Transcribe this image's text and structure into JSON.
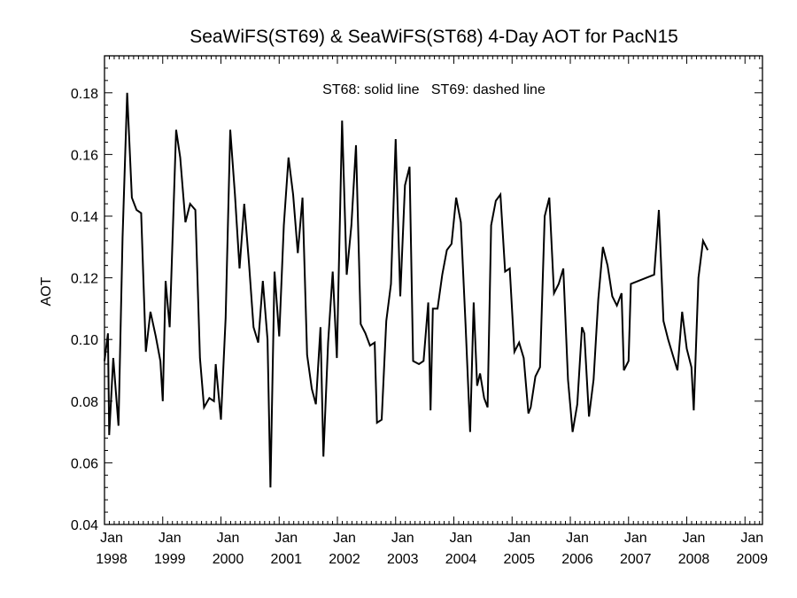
{
  "chart_data": {
    "type": "line",
    "title": "SeaWiFS(ST69) & SeaWiFS(ST68) 4-Day AOT for PacN15",
    "annotation": "ST68: solid line   ST69: dashed line",
    "ylabel": "AOT",
    "xlabel": "",
    "xlim": [
      1998.0,
      2009.3
    ],
    "ylim": [
      0.04,
      0.192
    ],
    "y_ticks": [
      0.04,
      0.06,
      0.08,
      0.1,
      0.12,
      0.14,
      0.16,
      0.18
    ],
    "y_tick_labels": [
      "0.04",
      "0.06",
      "0.08",
      "0.10",
      "0.12",
      "0.14",
      "0.16",
      "0.18"
    ],
    "x_ticks": [
      {
        "x": 1998,
        "month": "Jan",
        "year": "1998"
      },
      {
        "x": 1999,
        "month": "Jan",
        "year": "1999"
      },
      {
        "x": 2000,
        "month": "Jan",
        "year": "2000"
      },
      {
        "x": 2001,
        "month": "Jan",
        "year": "2001"
      },
      {
        "x": 2002,
        "month": "Jan",
        "year": "2002"
      },
      {
        "x": 2003,
        "month": "Jan",
        "year": "2003"
      },
      {
        "x": 2004,
        "month": "Jan",
        "year": "2004"
      },
      {
        "x": 2005,
        "month": "Jan",
        "year": "2005"
      },
      {
        "x": 2006,
        "month": "Jan",
        "year": "2006"
      },
      {
        "x": 2007,
        "month": "Jan",
        "year": "2007"
      },
      {
        "x": 2008,
        "month": "Jan",
        "year": "2008"
      },
      {
        "x": 2009,
        "month": "Jan",
        "year": "2009"
      }
    ],
    "grid": false,
    "series": [
      {
        "name": "ST68",
        "style": "solid",
        "color": "#000000",
        "points": [
          [
            1998.0,
            0.093
          ],
          [
            1998.06,
            0.102
          ],
          [
            1998.08,
            0.069
          ],
          [
            1998.15,
            0.094
          ],
          [
            1998.24,
            0.072
          ],
          [
            1998.31,
            0.133
          ],
          [
            1998.39,
            0.18
          ],
          [
            1998.47,
            0.146
          ],
          [
            1998.55,
            0.142
          ],
          [
            1998.63,
            0.141
          ],
          [
            1998.71,
            0.096
          ],
          [
            1998.79,
            0.109
          ],
          [
            1998.88,
            0.101
          ],
          [
            1998.96,
            0.093
          ],
          [
            1999.0,
            0.08
          ],
          [
            1999.05,
            0.119
          ],
          [
            1999.12,
            0.104
          ],
          [
            1999.23,
            0.168
          ],
          [
            1999.3,
            0.159
          ],
          [
            1999.39,
            0.138
          ],
          [
            1999.47,
            0.144
          ],
          [
            1999.56,
            0.142
          ],
          [
            1999.64,
            0.094
          ],
          [
            1999.71,
            0.078
          ],
          [
            1999.8,
            0.081
          ],
          [
            1999.88,
            0.08
          ],
          [
            1999.91,
            0.092
          ],
          [
            2000.0,
            0.074
          ],
          [
            2000.08,
            0.107
          ],
          [
            2000.16,
            0.168
          ],
          [
            2000.24,
            0.147
          ],
          [
            2000.32,
            0.123
          ],
          [
            2000.4,
            0.144
          ],
          [
            2000.48,
            0.125
          ],
          [
            2000.56,
            0.104
          ],
          [
            2000.64,
            0.099
          ],
          [
            2000.72,
            0.119
          ],
          [
            2000.8,
            0.1
          ],
          [
            2000.85,
            0.052
          ],
          [
            2000.92,
            0.122
          ],
          [
            2001.0,
            0.101
          ],
          [
            2001.08,
            0.137
          ],
          [
            2001.16,
            0.159
          ],
          [
            2001.24,
            0.147
          ],
          [
            2001.32,
            0.128
          ],
          [
            2001.4,
            0.146
          ],
          [
            2001.48,
            0.095
          ],
          [
            2001.56,
            0.084
          ],
          [
            2001.63,
            0.079
          ],
          [
            2001.71,
            0.104
          ],
          [
            2001.76,
            0.062
          ],
          [
            2001.84,
            0.099
          ],
          [
            2001.92,
            0.122
          ],
          [
            2001.99,
            0.094
          ],
          [
            2002.08,
            0.171
          ],
          [
            2002.16,
            0.121
          ],
          [
            2002.24,
            0.137
          ],
          [
            2002.32,
            0.163
          ],
          [
            2002.4,
            0.105
          ],
          [
            2002.48,
            0.102
          ],
          [
            2002.56,
            0.098
          ],
          [
            2002.64,
            0.099
          ],
          [
            2002.68,
            0.073
          ],
          [
            2002.76,
            0.074
          ],
          [
            2002.84,
            0.106
          ],
          [
            2002.92,
            0.118
          ],
          [
            2003.0,
            0.165
          ],
          [
            2003.08,
            0.114
          ],
          [
            2003.16,
            0.15
          ],
          [
            2003.24,
            0.156
          ],
          [
            2003.3,
            0.093
          ],
          [
            2003.4,
            0.092
          ],
          [
            2003.48,
            0.093
          ],
          [
            2003.56,
            0.112
          ],
          [
            2003.6,
            0.077
          ],
          [
            2003.64,
            0.11
          ],
          [
            2003.72,
            0.11
          ],
          [
            2003.8,
            0.121
          ],
          [
            2003.88,
            0.129
          ],
          [
            2003.96,
            0.131
          ],
          [
            2004.04,
            0.146
          ],
          [
            2004.12,
            0.138
          ],
          [
            2004.2,
            0.105
          ],
          [
            2004.28,
            0.07
          ],
          [
            2004.34,
            0.112
          ],
          [
            2004.4,
            0.085
          ],
          [
            2004.45,
            0.089
          ],
          [
            2004.52,
            0.081
          ],
          [
            2004.58,
            0.078
          ],
          [
            2004.64,
            0.137
          ],
          [
            2004.72,
            0.145
          ],
          [
            2004.8,
            0.147
          ],
          [
            2004.88,
            0.122
          ],
          [
            2004.96,
            0.123
          ],
          [
            2005.04,
            0.096
          ],
          [
            2005.12,
            0.099
          ],
          [
            2005.2,
            0.094
          ],
          [
            2005.28,
            0.076
          ],
          [
            2005.32,
            0.078
          ],
          [
            2005.4,
            0.088
          ],
          [
            2005.48,
            0.091
          ],
          [
            2005.56,
            0.14
          ],
          [
            2005.64,
            0.146
          ],
          [
            2005.72,
            0.115
          ],
          [
            2005.8,
            0.118
          ],
          [
            2005.88,
            0.123
          ],
          [
            2005.96,
            0.087
          ],
          [
            2006.04,
            0.07
          ],
          [
            2006.12,
            0.079
          ],
          [
            2006.2,
            0.104
          ],
          [
            2006.24,
            0.102
          ],
          [
            2006.32,
            0.075
          ],
          [
            2006.4,
            0.087
          ],
          [
            2006.48,
            0.113
          ],
          [
            2006.56,
            0.13
          ],
          [
            2006.64,
            0.124
          ],
          [
            2006.72,
            0.114
          ],
          [
            2006.8,
            0.111
          ],
          [
            2006.88,
            0.115
          ],
          [
            2006.92,
            0.09
          ],
          [
            2007.0,
            0.093
          ],
          [
            2007.04,
            0.118
          ],
          [
            2007.44,
            0.121
          ],
          [
            2007.52,
            0.142
          ],
          [
            2007.6,
            0.106
          ],
          [
            2007.68,
            0.1
          ],
          [
            2007.76,
            0.095
          ],
          [
            2007.84,
            0.09
          ],
          [
            2007.92,
            0.109
          ],
          [
            2008.0,
            0.097
          ],
          [
            2008.08,
            0.091
          ],
          [
            2008.12,
            0.077
          ],
          [
            2008.2,
            0.12
          ],
          [
            2008.28,
            0.132
          ],
          [
            2008.36,
            0.129
          ]
        ]
      }
    ]
  }
}
